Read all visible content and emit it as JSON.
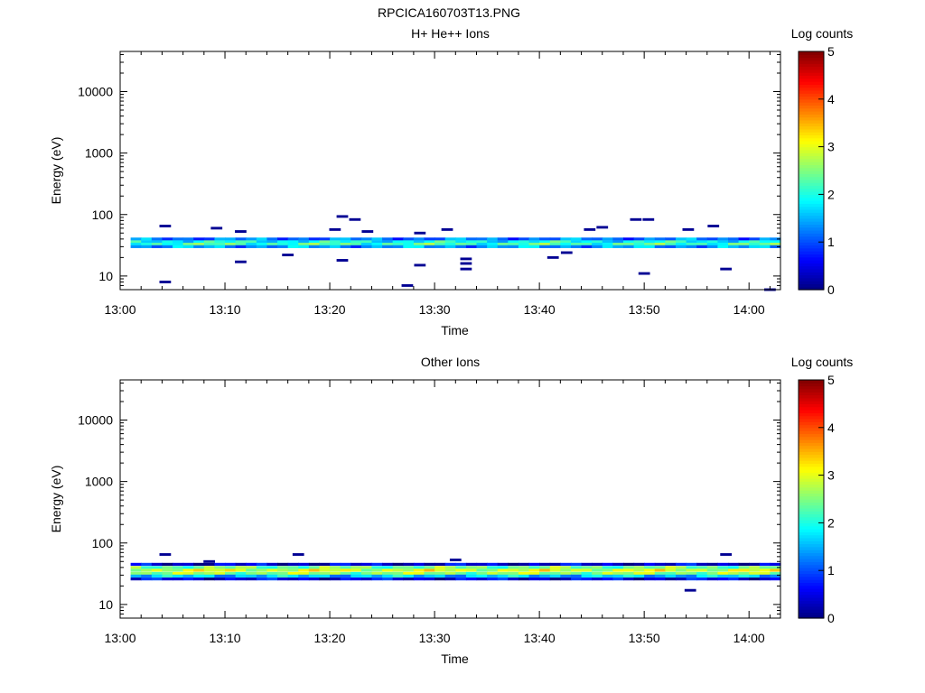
{
  "page_title": "RPCICA160703T13.PNG",
  "colorbar": {
    "label": "Log counts",
    "ticks": [
      0,
      1,
      2,
      3,
      4,
      5
    ],
    "colormap": [
      "#00007f",
      "#0000ff",
      "#007fff",
      "#00ffff",
      "#7fff7f",
      "#ffff00",
      "#ff7f00",
      "#ff0000",
      "#7f0000"
    ]
  },
  "chart_data": [
    {
      "type": "heatmap",
      "title": "H+ He++ Ions",
      "xlabel": "Time",
      "ylabel": "Energy (eV)",
      "x_ticks": [
        "13:00",
        "13:10",
        "13:20",
        "13:30",
        "13:40",
        "13:50",
        "14:00"
      ],
      "xlim_minutes_from_1300": [
        0,
        63
      ],
      "yscale": "log",
      "ylim": [
        6,
        45000
      ],
      "y_ticks": [
        "10",
        "100",
        "1000",
        "10000"
      ],
      "zlim": [
        0,
        5
      ],
      "band": {
        "energy_low": 27,
        "energy_high": 42,
        "typical_log_counts": 2.0
      },
      "band_rows": [
        {
          "energy": 40,
          "level": 1.2
        },
        {
          "energy": 36,
          "level": 1.9
        },
        {
          "energy": 33,
          "level": 2.2
        },
        {
          "energy": 30,
          "level": 1.4
        }
      ],
      "sparse_points": [
        {
          "minute": 4.3,
          "energy": 65,
          "level": 0.1
        },
        {
          "minute": 4.3,
          "energy": 8,
          "level": 0.1
        },
        {
          "minute": 9.2,
          "energy": 60,
          "level": 0.1
        },
        {
          "minute": 11.5,
          "energy": 53,
          "level": 0.1
        },
        {
          "minute": 11.5,
          "energy": 17,
          "level": 0.1
        },
        {
          "minute": 16.0,
          "energy": 22,
          "level": 0.1
        },
        {
          "minute": 20.5,
          "energy": 57,
          "level": 0.1
        },
        {
          "minute": 21.2,
          "energy": 93,
          "level": 0.1
        },
        {
          "minute": 21.2,
          "energy": 18,
          "level": 0.1
        },
        {
          "minute": 22.4,
          "energy": 83,
          "level": 0.1
        },
        {
          "minute": 23.6,
          "energy": 53,
          "level": 0.1
        },
        {
          "minute": 27.4,
          "energy": 7,
          "level": 0.1
        },
        {
          "minute": 28.6,
          "energy": 50,
          "level": 0.1
        },
        {
          "minute": 28.6,
          "energy": 15,
          "level": 0.1
        },
        {
          "minute": 31.2,
          "energy": 57,
          "level": 0.1
        },
        {
          "minute": 33.0,
          "energy": 19,
          "level": 0.1
        },
        {
          "minute": 33.0,
          "energy": 16,
          "level": 0.1
        },
        {
          "minute": 33.0,
          "energy": 13,
          "level": 0.1
        },
        {
          "minute": 41.3,
          "energy": 20,
          "level": 0.1
        },
        {
          "minute": 42.6,
          "energy": 24,
          "level": 0.1
        },
        {
          "minute": 44.8,
          "energy": 57,
          "level": 0.1
        },
        {
          "minute": 46.0,
          "energy": 62,
          "level": 0.1
        },
        {
          "minute": 49.2,
          "energy": 83,
          "level": 0.1
        },
        {
          "minute": 50.4,
          "energy": 83,
          "level": 0.1
        },
        {
          "minute": 50.0,
          "energy": 11,
          "level": 0.1
        },
        {
          "minute": 54.2,
          "energy": 57,
          "level": 0.1
        },
        {
          "minute": 56.6,
          "energy": 65,
          "level": 0.1
        },
        {
          "minute": 57.8,
          "energy": 13,
          "level": 0.1
        },
        {
          "minute": 62.0,
          "energy": 6,
          "level": 0.1
        }
      ]
    },
    {
      "type": "heatmap",
      "title": "Other Ions",
      "xlabel": "Time",
      "ylabel": "Energy (eV)",
      "x_ticks": [
        "13:00",
        "13:10",
        "13:20",
        "13:30",
        "13:40",
        "13:50",
        "14:00"
      ],
      "xlim_minutes_from_1300": [
        0,
        63
      ],
      "yscale": "log",
      "ylim": [
        6,
        45000
      ],
      "y_ticks": [
        "10",
        "100",
        "1000",
        "10000"
      ],
      "zlim": [
        0,
        5
      ],
      "band": {
        "energy_low": 24,
        "energy_high": 46,
        "typical_log_counts": 2.6
      },
      "band_rows": [
        {
          "energy": 45,
          "level": 0.4
        },
        {
          "energy": 40,
          "level": 2.4
        },
        {
          "energy": 36,
          "level": 2.9
        },
        {
          "energy": 32,
          "level": 2.6
        },
        {
          "energy": 29,
          "level": 1.6
        },
        {
          "energy": 26,
          "level": 0.5
        }
      ],
      "sparse_points": [
        {
          "minute": 4.3,
          "energy": 65,
          "level": 0.1
        },
        {
          "minute": 8.5,
          "energy": 50,
          "level": 0.1
        },
        {
          "minute": 17.0,
          "energy": 65,
          "level": 0.1
        },
        {
          "minute": 32.0,
          "energy": 53,
          "level": 0.1
        },
        {
          "minute": 54.4,
          "energy": 17,
          "level": 0.1
        },
        {
          "minute": 57.8,
          "energy": 65,
          "level": 0.1
        }
      ]
    }
  ]
}
